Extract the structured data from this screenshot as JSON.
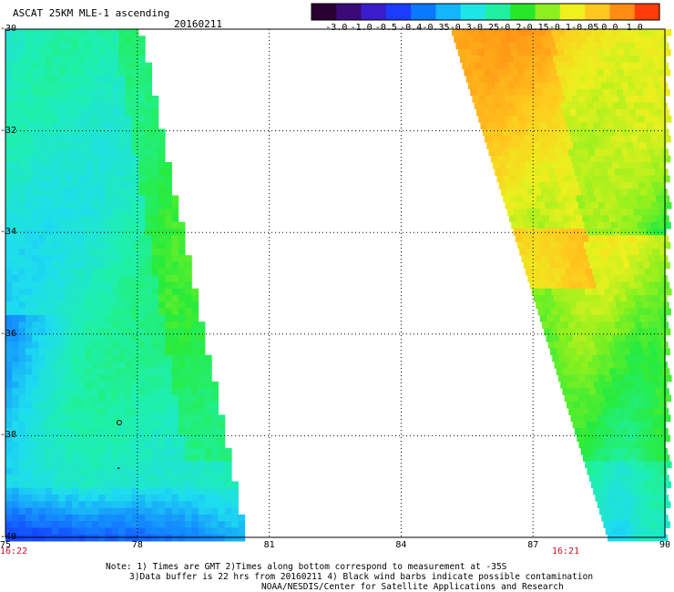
{
  "header": {
    "title": "ASCAT 25KM MLE-1 ascending",
    "date": "20160211"
  },
  "colorbar": {
    "labels": [
      "-3.0",
      "-1.0",
      "-0.5",
      "-0.4",
      "-0.35",
      "-0.3",
      "-0.25",
      "-0.2",
      "-0.15",
      "-0.1",
      "-0.05",
      "0.0",
      "1.0"
    ],
    "colors": [
      "#2a0033",
      "#3c0a78",
      "#3a1ccc",
      "#1a3cff",
      "#0a78ff",
      "#14b4ff",
      "#1ee6e6",
      "#1ef0a0",
      "#28e628",
      "#8cf01e",
      "#f0f01e",
      "#ffc81e",
      "#ff8c14",
      "#ff3c0a"
    ]
  },
  "map": {
    "lat_labels": [
      "-30",
      "-32",
      "-34",
      "-36",
      "-38",
      "-40"
    ],
    "lon_labels": [
      "75",
      "78",
      "81",
      "84",
      "87",
      "90"
    ],
    "left_swath_time": "16:22",
    "right_swath_time": "16:21"
  },
  "footer": {
    "line1": "Note: 1) Times are GMT 2)Times along bottom correspond to measurement at -35S",
    "line2": "3)Data buffer is 22 hrs from 20160211 4) Black wind barbs indicate possible contamination",
    "line3": "NOAA/NESDIS/Center for Satellite Applications and Research"
  }
}
